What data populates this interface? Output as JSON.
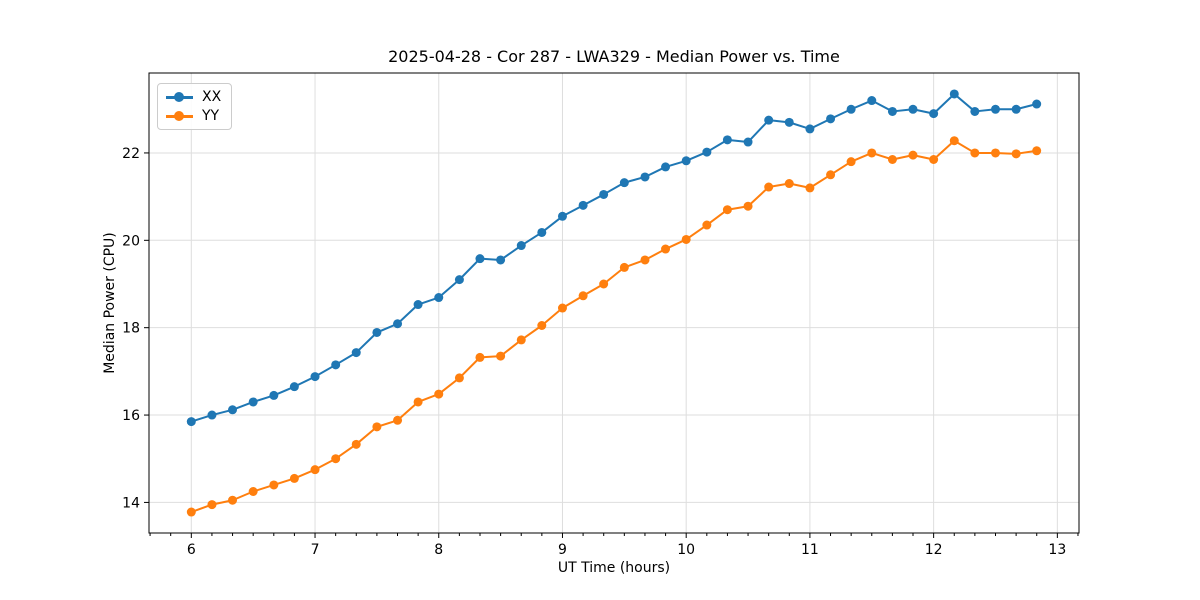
{
  "page": {
    "background": "#ffffff"
  },
  "chart_data": {
    "type": "line",
    "title": "2025-04-28 - Cor 287 - LWA329 - Median Power vs. Time",
    "xlabel": "UT Time (hours)",
    "ylabel": "Median Power (CPU)",
    "xlim": [
      5.658,
      13.175
    ],
    "ylim": [
      13.3,
      23.83
    ],
    "xticks": [
      6,
      7,
      8,
      9,
      10,
      11,
      12,
      13
    ],
    "yticks": [
      14,
      16,
      18,
      20,
      22
    ],
    "x_minor_tick_step": 0.166667,
    "grid": true,
    "grid_color": "#dedede",
    "spine_color": "#000000",
    "legend_position": "upper-left",
    "x": [
      6.0,
      6.167,
      6.333,
      6.5,
      6.667,
      6.833,
      7.0,
      7.167,
      7.333,
      7.5,
      7.667,
      7.833,
      8.0,
      8.167,
      8.333,
      8.5,
      8.667,
      8.833,
      9.0,
      9.167,
      9.333,
      9.5,
      9.667,
      9.833,
      10.0,
      10.167,
      10.333,
      10.5,
      10.667,
      10.833,
      11.0,
      11.167,
      11.333,
      11.5,
      11.667,
      11.833,
      12.0,
      12.167,
      12.333,
      12.5,
      12.667,
      12.833
    ],
    "series": [
      {
        "name": "XX",
        "color": "#1f77b4",
        "marker": "circle",
        "values": [
          15.85,
          16.0,
          16.12,
          16.3,
          16.45,
          16.65,
          16.88,
          17.15,
          17.43,
          17.89,
          18.09,
          18.53,
          18.69,
          19.1,
          19.58,
          19.55,
          19.88,
          20.18,
          20.55,
          20.8,
          21.05,
          21.32,
          21.45,
          21.68,
          21.82,
          22.02,
          22.3,
          22.25,
          22.75,
          22.7,
          22.55,
          22.78,
          23.0,
          23.2,
          22.95,
          23.0,
          22.9,
          23.35,
          22.95,
          23.0,
          23.0,
          23.12
        ]
      },
      {
        "name": "YY",
        "color": "#ff7f0e",
        "marker": "circle",
        "values": [
          13.78,
          13.95,
          14.05,
          14.25,
          14.4,
          14.55,
          14.75,
          15.0,
          15.33,
          15.73,
          15.88,
          16.3,
          16.48,
          16.85,
          17.32,
          17.35,
          17.72,
          18.05,
          18.45,
          18.73,
          19.0,
          19.38,
          19.55,
          19.8,
          20.02,
          20.35,
          20.7,
          20.78,
          21.22,
          21.3,
          21.2,
          21.5,
          21.8,
          22.0,
          21.85,
          21.95,
          21.85,
          22.28,
          22.0,
          22.0,
          21.98,
          22.05
        ]
      }
    ]
  }
}
